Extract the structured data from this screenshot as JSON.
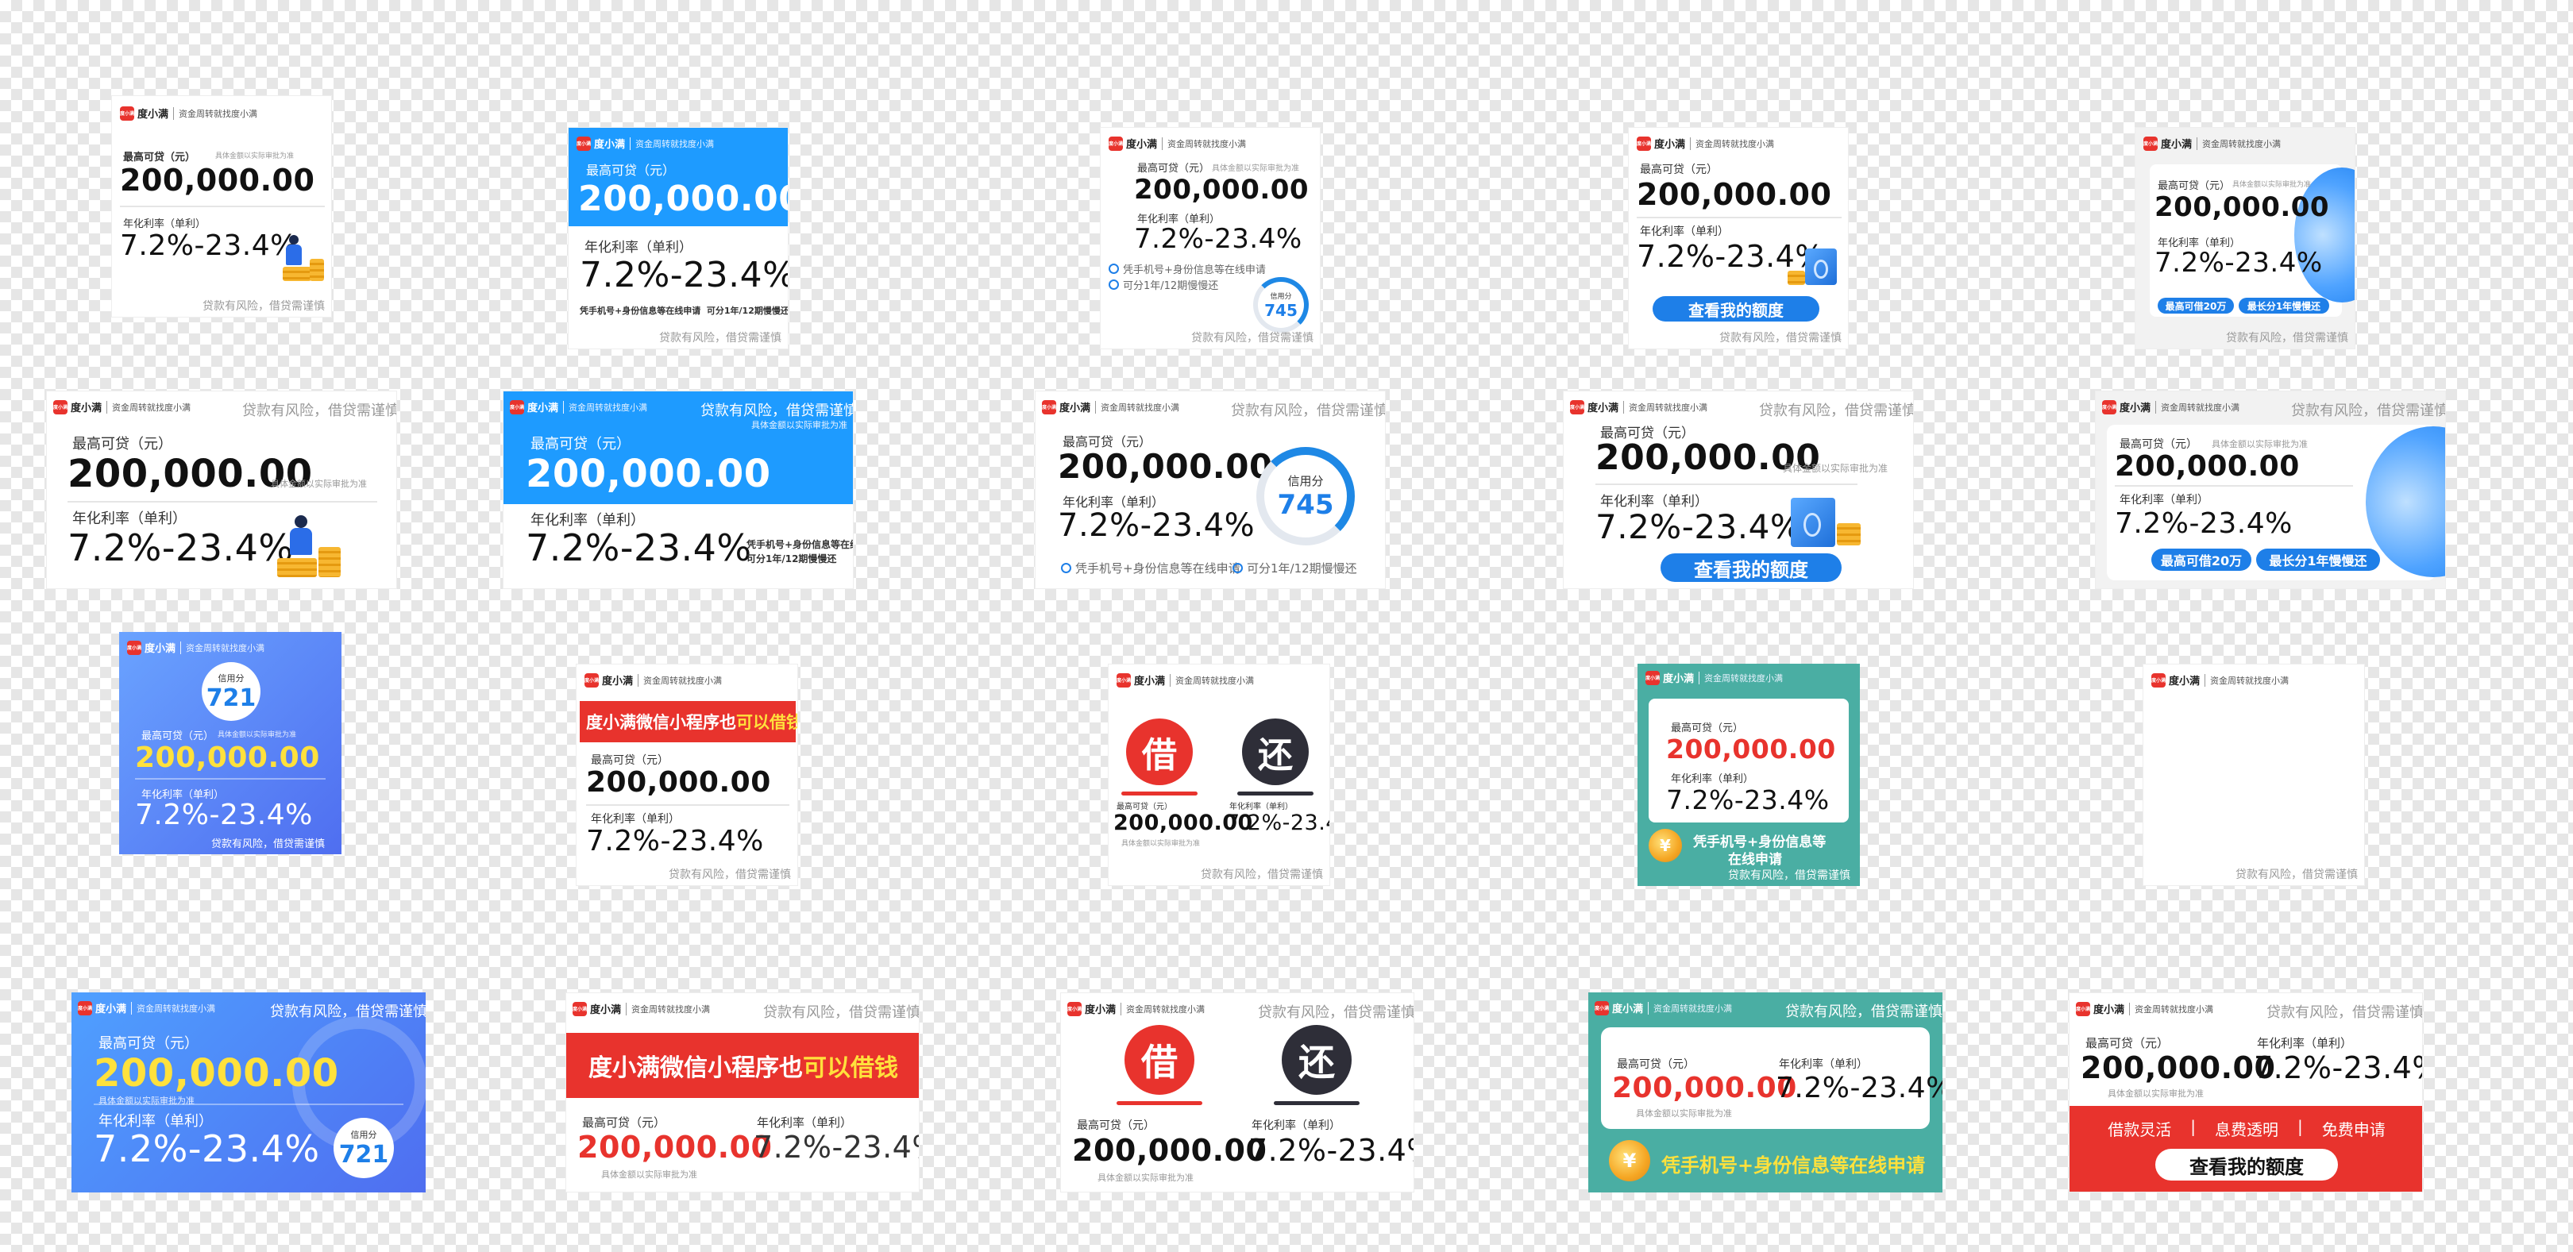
{
  "common": {
    "logo_mark": "度小满",
    "brand": "度小满",
    "slogan": "资金周转就找度小满",
    "amount_label": "最高可贷（元）",
    "amount_label_alt": "最高可贷（元）",
    "amount": "200,000.00",
    "rate_label": "年化利率（单利）",
    "rate": "7.2%-23.4%",
    "risk": "贷款有风险，借贷需谨慎",
    "note": "具体金额以实际审批为准",
    "score_label": "信用分",
    "score_745": "745",
    "score_721": "721",
    "check_quota": "查看我的额度",
    "bullet_phone": "凭手机号+身份信息等在线申请",
    "bullet_term": "可分1年/12期慢慢还",
    "tag_max": "最高可借20万",
    "tag_longest": "最长分1年慢慢还",
    "wechat_prefix": "度小满微信小程序也",
    "wechat_highlight": "可以借钱",
    "char_borrow": "借",
    "char_repay": "还",
    "teal_phone_1": "凭手机号+身份信息等",
    "teal_phone_2": "在线申请",
    "teal_phone_full": "凭手机号+身份信息等在线申请",
    "feature_1": "借款灵活",
    "feature_2": "息费透明",
    "feature_3": "免费申请",
    "separator": "|",
    "coin_symbol": "¥"
  },
  "colors": {
    "brand_red": "#e8332d",
    "brand_blue": "#1e7fe8",
    "sky_blue": "#1e9bff",
    "gradient_blue": "#4f7cf5",
    "teal": "#4aaea3",
    "highlight_yellow": "#ffe13c",
    "dark_circle": "#2e2e38"
  }
}
